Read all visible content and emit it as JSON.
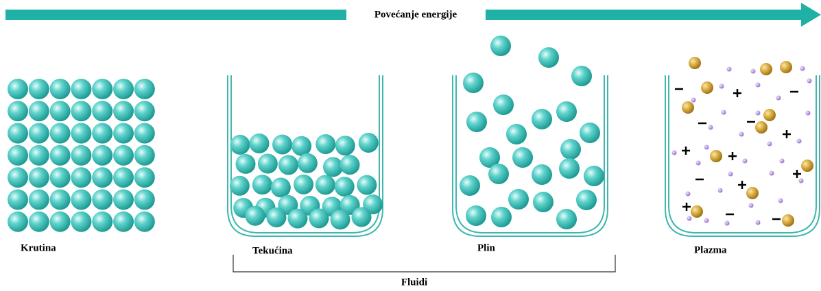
{
  "arrow": {
    "label": "Povećanje energije"
  },
  "states": [
    {
      "label": "Krutina"
    },
    {
      "label": "Tekućina"
    },
    {
      "label": "Plin"
    },
    {
      "label": "Plazma"
    }
  ],
  "group": {
    "label": "Fluidi"
  }
}
